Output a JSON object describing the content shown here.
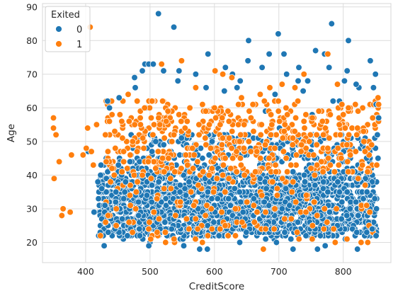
{
  "chart_data": {
    "type": "scatter",
    "title": "",
    "xlabel": "CreditScore",
    "ylabel": "Age",
    "xlim": [
      333,
      874
    ],
    "ylim": [
      14,
      91
    ],
    "xticks": [
      400,
      500,
      600,
      700,
      800
    ],
    "yticks": [
      20,
      30,
      40,
      50,
      60,
      70,
      80,
      90
    ],
    "grid": true,
    "legend": {
      "title": "Exited",
      "placement": "top-left"
    },
    "series": [
      {
        "name": "0",
        "color": "#1f77b4",
        "bulk_count": 2300,
        "points": [
          [
            513,
            88
          ],
          [
            537,
            84
          ],
          [
            782,
            85
          ],
          [
            699,
            82
          ],
          [
            808,
            80
          ],
          [
            653,
            80
          ],
          [
            492,
            73
          ],
          [
            498,
            73
          ],
          [
            505,
            73
          ],
          [
            521,
            71
          ],
          [
            545,
            71
          ],
          [
            571,
            70
          ],
          [
            590,
            76
          ],
          [
            617,
            72
          ],
          [
            652,
            74
          ],
          [
            674,
            72
          ],
          [
            685,
            76
          ],
          [
            708,
            76
          ],
          [
            731,
            72
          ],
          [
            757,
            77
          ],
          [
            771,
            76
          ],
          [
            806,
            71
          ],
          [
            842,
            74
          ],
          [
            850,
            70
          ],
          [
            476,
            69
          ],
          [
            488,
            71
          ],
          [
            404,
            47
          ],
          [
            434,
            62
          ],
          [
            437,
            60
          ],
          [
            452,
            63
          ],
          [
            419,
            38
          ],
          [
            413,
            29
          ],
          [
            420,
            33
          ],
          [
            425,
            27
          ],
          [
            435,
            23
          ],
          [
            851,
            22
          ],
          [
            845,
            24
          ],
          [
            822,
            18
          ],
          [
            772,
            19
          ],
          [
            760,
            18
          ],
          [
            722,
            18
          ],
          [
            589,
            18
          ],
          [
            577,
            18
          ],
          [
            498,
            19
          ],
          [
            430,
            31
          ],
          [
            447,
            35
          ],
          [
            425,
            36
          ],
          [
            462,
            38
          ],
          [
            628,
            70
          ],
          [
            640,
            68
          ],
          [
            712,
            70
          ],
          [
            730,
            68
          ],
          [
            778,
            72
          ],
          [
            820,
            67
          ],
          [
            847,
            66
          ],
          [
            851,
            61
          ],
          [
            855,
            57
          ],
          [
            853,
            52
          ],
          [
            850,
            48
          ],
          [
            854,
            45
          ]
        ]
      },
      {
        "name": "1",
        "color": "#ff7f0e",
        "bulk_count": 600,
        "points": [
          [
            407,
            84
          ],
          [
            350,
            57
          ],
          [
            350,
            54
          ],
          [
            354,
            52
          ],
          [
            359,
            44
          ],
          [
            351,
            39
          ],
          [
            365,
            30
          ],
          [
            363,
            28
          ],
          [
            376,
            29
          ],
          [
            378,
            46
          ],
          [
            396,
            46
          ],
          [
            401,
            48
          ],
          [
            403,
            54
          ],
          [
            409,
            47
          ],
          [
            417,
            55
          ],
          [
            412,
            43
          ],
          [
            423,
            22
          ],
          [
            431,
            26
          ],
          [
            432,
            44
          ],
          [
            466,
            64
          ],
          [
            473,
            50
          ],
          [
            480,
            62
          ],
          [
            503,
            62
          ],
          [
            518,
            73
          ],
          [
            549,
            74
          ],
          [
            571,
            66
          ],
          [
            601,
            71
          ],
          [
            613,
            70
          ],
          [
            627,
            69
          ],
          [
            642,
            63
          ],
          [
            671,
            64
          ],
          [
            686,
            66
          ],
          [
            705,
            67
          ],
          [
            725,
            66
          ],
          [
            739,
            70
          ],
          [
            776,
            76
          ],
          [
            791,
            67
          ],
          [
            808,
            60
          ],
          [
            823,
            59
          ],
          [
            844,
            49
          ],
          [
            852,
            43
          ],
          [
            838,
            20
          ],
          [
            770,
            24
          ],
          [
            748,
            30
          ],
          [
            742,
            29
          ],
          [
            709,
            27
          ],
          [
            643,
            26
          ],
          [
            568,
            31
          ],
          [
            488,
            40
          ],
          [
            459,
            47
          ],
          [
            456,
            56
          ],
          [
            441,
            58
          ],
          [
            612,
            57
          ],
          [
            689,
            55
          ],
          [
            752,
            57
          ],
          [
            803,
            54
          ],
          [
            821,
            52
          ],
          [
            855,
            61
          ],
          [
            854,
            63
          ],
          [
            676,
            18
          ]
        ]
      }
    ]
  }
}
